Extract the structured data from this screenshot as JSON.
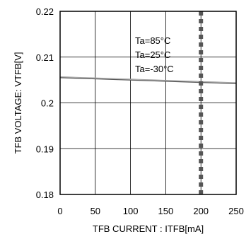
{
  "chart_data": {
    "type": "line",
    "title": "",
    "xlabel": "TFB CURRENT : ITFB[mA]",
    "ylabel": "TFB VOLTAGE: VTFB[V]",
    "xlim": [
      0,
      250
    ],
    "ylim": [
      0.18,
      0.22
    ],
    "xticks": [
      "0",
      "50",
      "100",
      "150",
      "200",
      "250"
    ],
    "yticks": [
      "0.18",
      "0.19",
      "0.2",
      "0.21",
      "0.22"
    ],
    "grid": true,
    "series": [
      {
        "name": "Ta=85°C",
        "x": [
          0,
          250
        ],
        "y": [
          0.2057,
          0.2044
        ]
      },
      {
        "name": "Ta=25°C",
        "x": [
          0,
          250
        ],
        "y": [
          0.2056,
          0.2043
        ]
      },
      {
        "name": "Ta=-30°C",
        "x": [
          0,
          250
        ],
        "y": [
          0.2055,
          0.2042
        ]
      }
    ],
    "marker_line": {
      "x": 200
    },
    "legend_position": "top-right"
  }
}
